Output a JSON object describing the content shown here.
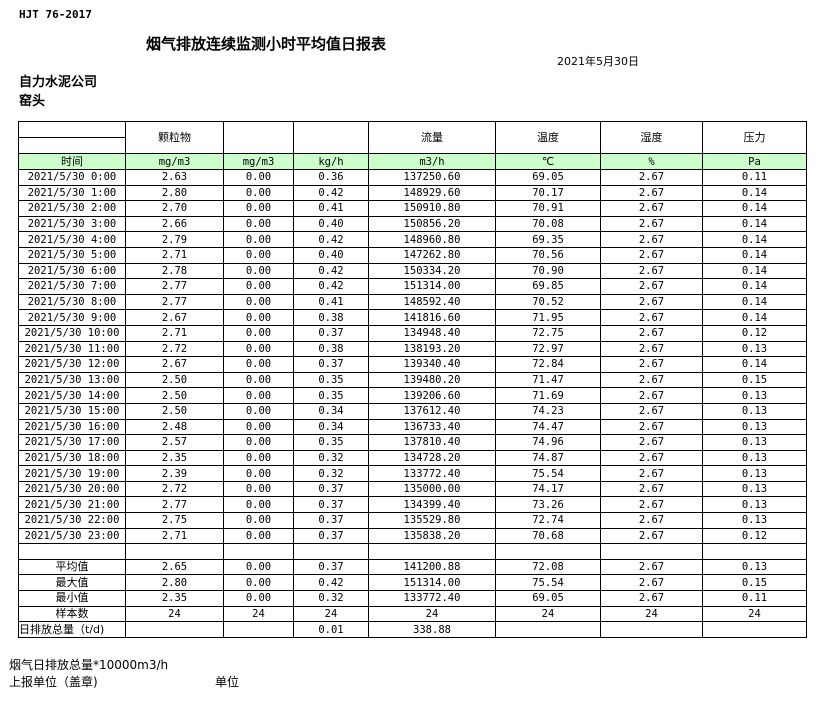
{
  "header": {
    "standard": "HJT  76-2017",
    "title": "烟气排放连续监测小时平均值日报表",
    "date": "2021年5月30日",
    "company": "自力水泥公司",
    "unit": "窑头"
  },
  "table": {
    "columns": [
      "颗粒物",
      "",
      "",
      "流量",
      "温度",
      "湿度",
      "压力"
    ],
    "time_header": "时间",
    "units": [
      "mg/m3",
      "mg/m3",
      "kg/h",
      "m3/h",
      "℃",
      "%",
      "Pa"
    ],
    "rows": [
      [
        "2021/5/30 0:00",
        "2.63",
        "0.00",
        "0.36",
        "137250.60",
        "69.05",
        "2.67",
        "0.11"
      ],
      [
        "2021/5/30 1:00",
        "2.80",
        "0.00",
        "0.42",
        "148929.60",
        "70.17",
        "2.67",
        "0.14"
      ],
      [
        "2021/5/30 2:00",
        "2.70",
        "0.00",
        "0.41",
        "150910.80",
        "70.91",
        "2.67",
        "0.14"
      ],
      [
        "2021/5/30 3:00",
        "2.66",
        "0.00",
        "0.40",
        "150856.20",
        "70.08",
        "2.67",
        "0.14"
      ],
      [
        "2021/5/30 4:00",
        "2.79",
        "0.00",
        "0.42",
        "148960.80",
        "69.35",
        "2.67",
        "0.14"
      ],
      [
        "2021/5/30 5:00",
        "2.71",
        "0.00",
        "0.40",
        "147262.80",
        "70.56",
        "2.67",
        "0.14"
      ],
      [
        "2021/5/30 6:00",
        "2.78",
        "0.00",
        "0.42",
        "150334.20",
        "70.90",
        "2.67",
        "0.14"
      ],
      [
        "2021/5/30 7:00",
        "2.77",
        "0.00",
        "0.42",
        "151314.00",
        "69.85",
        "2.67",
        "0.14"
      ],
      [
        "2021/5/30 8:00",
        "2.77",
        "0.00",
        "0.41",
        "148592.40",
        "70.52",
        "2.67",
        "0.14"
      ],
      [
        "2021/5/30 9:00",
        "2.67",
        "0.00",
        "0.38",
        "141816.60",
        "71.95",
        "2.67",
        "0.14"
      ],
      [
        "2021/5/30 10:00",
        "2.71",
        "0.00",
        "0.37",
        "134948.40",
        "72.75",
        "2.67",
        "0.12"
      ],
      [
        "2021/5/30 11:00",
        "2.72",
        "0.00",
        "0.38",
        "138193.20",
        "72.97",
        "2.67",
        "0.13"
      ],
      [
        "2021/5/30 12:00",
        "2.67",
        "0.00",
        "0.37",
        "139340.40",
        "72.84",
        "2.67",
        "0.14"
      ],
      [
        "2021/5/30 13:00",
        "2.50",
        "0.00",
        "0.35",
        "139480.20",
        "71.47",
        "2.67",
        "0.15"
      ],
      [
        "2021/5/30 14:00",
        "2.50",
        "0.00",
        "0.35",
        "139206.60",
        "71.69",
        "2.67",
        "0.13"
      ],
      [
        "2021/5/30 15:00",
        "2.50",
        "0.00",
        "0.34",
        "137612.40",
        "74.23",
        "2.67",
        "0.13"
      ],
      [
        "2021/5/30 16:00",
        "2.48",
        "0.00",
        "0.34",
        "136733.40",
        "74.47",
        "2.67",
        "0.13"
      ],
      [
        "2021/5/30 17:00",
        "2.57",
        "0.00",
        "0.35",
        "137810.40",
        "74.96",
        "2.67",
        "0.13"
      ],
      [
        "2021/5/30 18:00",
        "2.35",
        "0.00",
        "0.32",
        "134728.20",
        "74.87",
        "2.67",
        "0.13"
      ],
      [
        "2021/5/30 19:00",
        "2.39",
        "0.00",
        "0.32",
        "133772.40",
        "75.54",
        "2.67",
        "0.13"
      ],
      [
        "2021/5/30 20:00",
        "2.72",
        "0.00",
        "0.37",
        "135000.00",
        "74.17",
        "2.67",
        "0.13"
      ],
      [
        "2021/5/30 21:00",
        "2.77",
        "0.00",
        "0.37",
        "134399.40",
        "73.26",
        "2.67",
        "0.13"
      ],
      [
        "2021/5/30 22:00",
        "2.75",
        "0.00",
        "0.37",
        "135529.80",
        "72.74",
        "2.67",
        "0.13"
      ],
      [
        "2021/5/30 23:00",
        "2.71",
        "0.00",
        "0.37",
        "135838.20",
        "70.68",
        "2.67",
        "0.12"
      ]
    ],
    "summary": [
      [
        "平均值",
        "2.65",
        "0.00",
        "0.37",
        "141200.88",
        "72.08",
        "2.67",
        "0.13"
      ],
      [
        "最大值",
        "2.80",
        "0.00",
        "0.42",
        "151314.00",
        "75.54",
        "2.67",
        "0.15"
      ],
      [
        "最小值",
        "2.35",
        "0.00",
        "0.32",
        "133772.40",
        "69.05",
        "2.67",
        "0.11"
      ],
      [
        "样本数",
        "24",
        "24",
        "24",
        "24",
        "24",
        "24",
        "24"
      ],
      [
        "日排放总量（t/d)",
        "",
        "",
        "0.01",
        "338.88",
        "",
        "",
        ""
      ]
    ]
  },
  "footer": {
    "note": "烟气日排放总量*10000m3/h",
    "report_unit": "上报单位（盖章)",
    "unit_label": "单位"
  }
}
